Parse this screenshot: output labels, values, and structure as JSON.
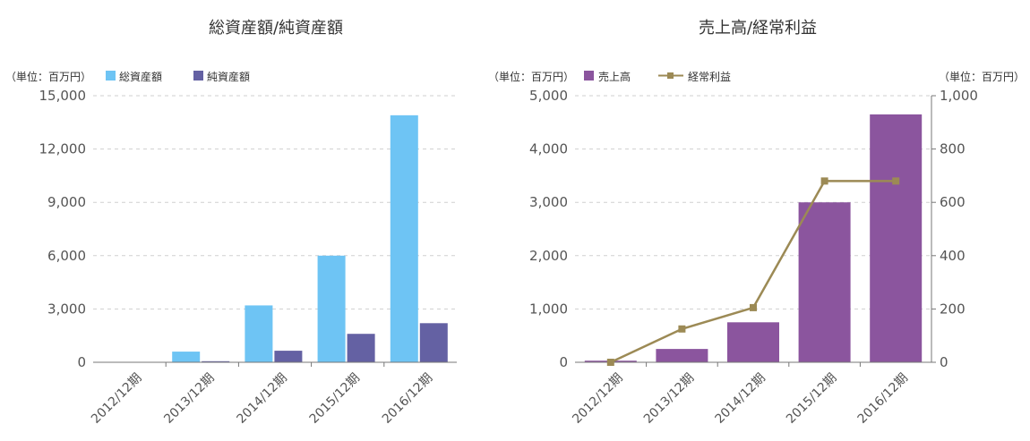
{
  "chart_data": [
    {
      "type": "bar",
      "title": "総資産額/純資産額",
      "unit_label": "（単位：百万円）",
      "categories": [
        "2012/12期",
        "2013/12期",
        "2014/12期",
        "2015/12期",
        "2016/12期"
      ],
      "series": [
        {
          "name": "総資産額",
          "color": "#6ec4f4",
          "values": [
            20,
            600,
            3200,
            6000,
            13900
          ]
        },
        {
          "name": "純資産額",
          "color": "#6461a3",
          "values": [
            10,
            60,
            650,
            1600,
            2200
          ]
        }
      ],
      "ylim": [
        0,
        15000
      ],
      "yticks": [
        "0",
        "3,000",
        "6,000",
        "9,000",
        "12,000",
        "15,000"
      ],
      "grid": true
    },
    {
      "type": "bar+line",
      "title": "売上高/経常利益",
      "unit_label_left": "（単位：百万円）",
      "unit_label_right": "（単位：百万円）",
      "categories": [
        "2012/12期",
        "2013/12期",
        "2014/12期",
        "2015/12期",
        "2016/12期"
      ],
      "bar_series": {
        "name": "売上高",
        "color": "#8b559e",
        "values": [
          30,
          250,
          750,
          3000,
          4650
        ]
      },
      "line_series": {
        "name": "経常利益",
        "color": "#9c8a55",
        "values": [
          0,
          125,
          205,
          680,
          680
        ]
      },
      "ylim_left": [
        0,
        5000
      ],
      "ylim_right": [
        0,
        1000
      ],
      "yticks_left": [
        "0",
        "1,000",
        "2,000",
        "3,000",
        "4,000",
        "5,000"
      ],
      "yticks_right": [
        "0",
        "200",
        "400",
        "600",
        "800",
        "1,000"
      ],
      "grid": true
    }
  ]
}
